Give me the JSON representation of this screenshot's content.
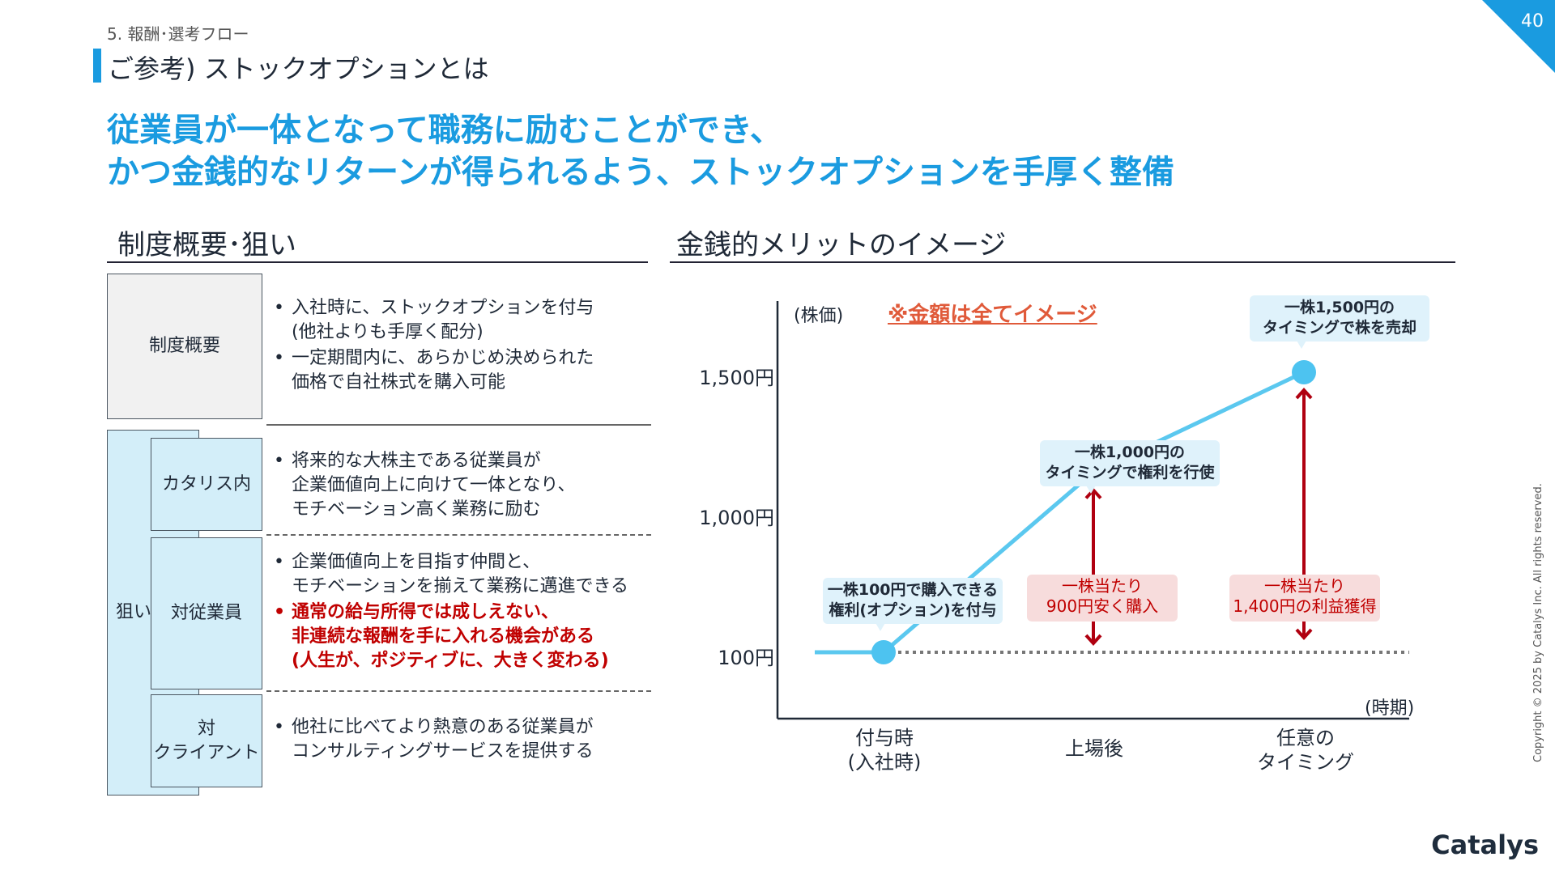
{
  "page": {
    "number": "40",
    "section": "5. 報酬･選考フロー",
    "subtitle": "ご参考) ストックオプションとは"
  },
  "headline": {
    "line1": "従業員が一体となって職務に励むことができ、",
    "line2": "かつ金銭的なリターンが得られるよう、ストックオプションを手厚く整備"
  },
  "left": {
    "title": "制度概要･狙い",
    "overview_label": "制度概要",
    "overview_bullets": [
      "入社時に、ストックオプションを付与\n(他社よりも手厚く配分)",
      "一定期間内に、あらかじめ決められた\n価格で自社株式を購入可能"
    ],
    "aim_label": "狙い",
    "rows": [
      {
        "label": "カタリス内",
        "bullets": [
          "将来的な大株主である従業員が\n企業価値向上に向けて一体となり、\nモチベーション高く業務に励む"
        ]
      },
      {
        "label": "対従業員",
        "bullets": [
          "企業価値向上を目指す仲間と、\nモチベーションを揃えて業務に邁進できる"
        ],
        "red_bullet": "通常の給与所得では成しえない、\n非連続な報酬を手に入れる機会がある\n(人生が、ポジティブに、大きく変わる)"
      },
      {
        "label": "対\nクライアント",
        "bullets": [
          "他社に比べてより熱意のある従業員が\nコンサルティングサービスを提供する"
        ]
      }
    ]
  },
  "right": {
    "title": "金銭的メリットのイメージ",
    "note": "※金額は全てイメージ"
  },
  "chart_data": {
    "type": "line",
    "ylabel": "(株価)",
    "xlabel": "(時期)",
    "yticks": [
      "1,500円",
      "1,000円",
      "100円"
    ],
    "categories": [
      "付与時\n(入社時)",
      "上場後",
      "任意の\nタイミング"
    ],
    "series": [
      {
        "values": [
          100,
          1000,
          1500
        ]
      }
    ],
    "baseline": 100,
    "annotations": {
      "grant": "一株100円で購入できる\n権利(オプション)を付与",
      "exercise": "一株1,000円の\nタイミングで権利を行使",
      "sell": "一株1,500円の\nタイミングで株を売却",
      "saving": "一株当たり\n900円安く購入",
      "profit": "一株当たり\n1,400円の利益獲得"
    },
    "colors": {
      "line": "#5bc8ef",
      "point": "#4dc3f0",
      "arrow": "#b00010",
      "baseline": "#777777"
    }
  },
  "footer": {
    "copyright": "Copyright © 2025 by Catalys Inc. All rights reserved.",
    "logo": "Catalys"
  }
}
